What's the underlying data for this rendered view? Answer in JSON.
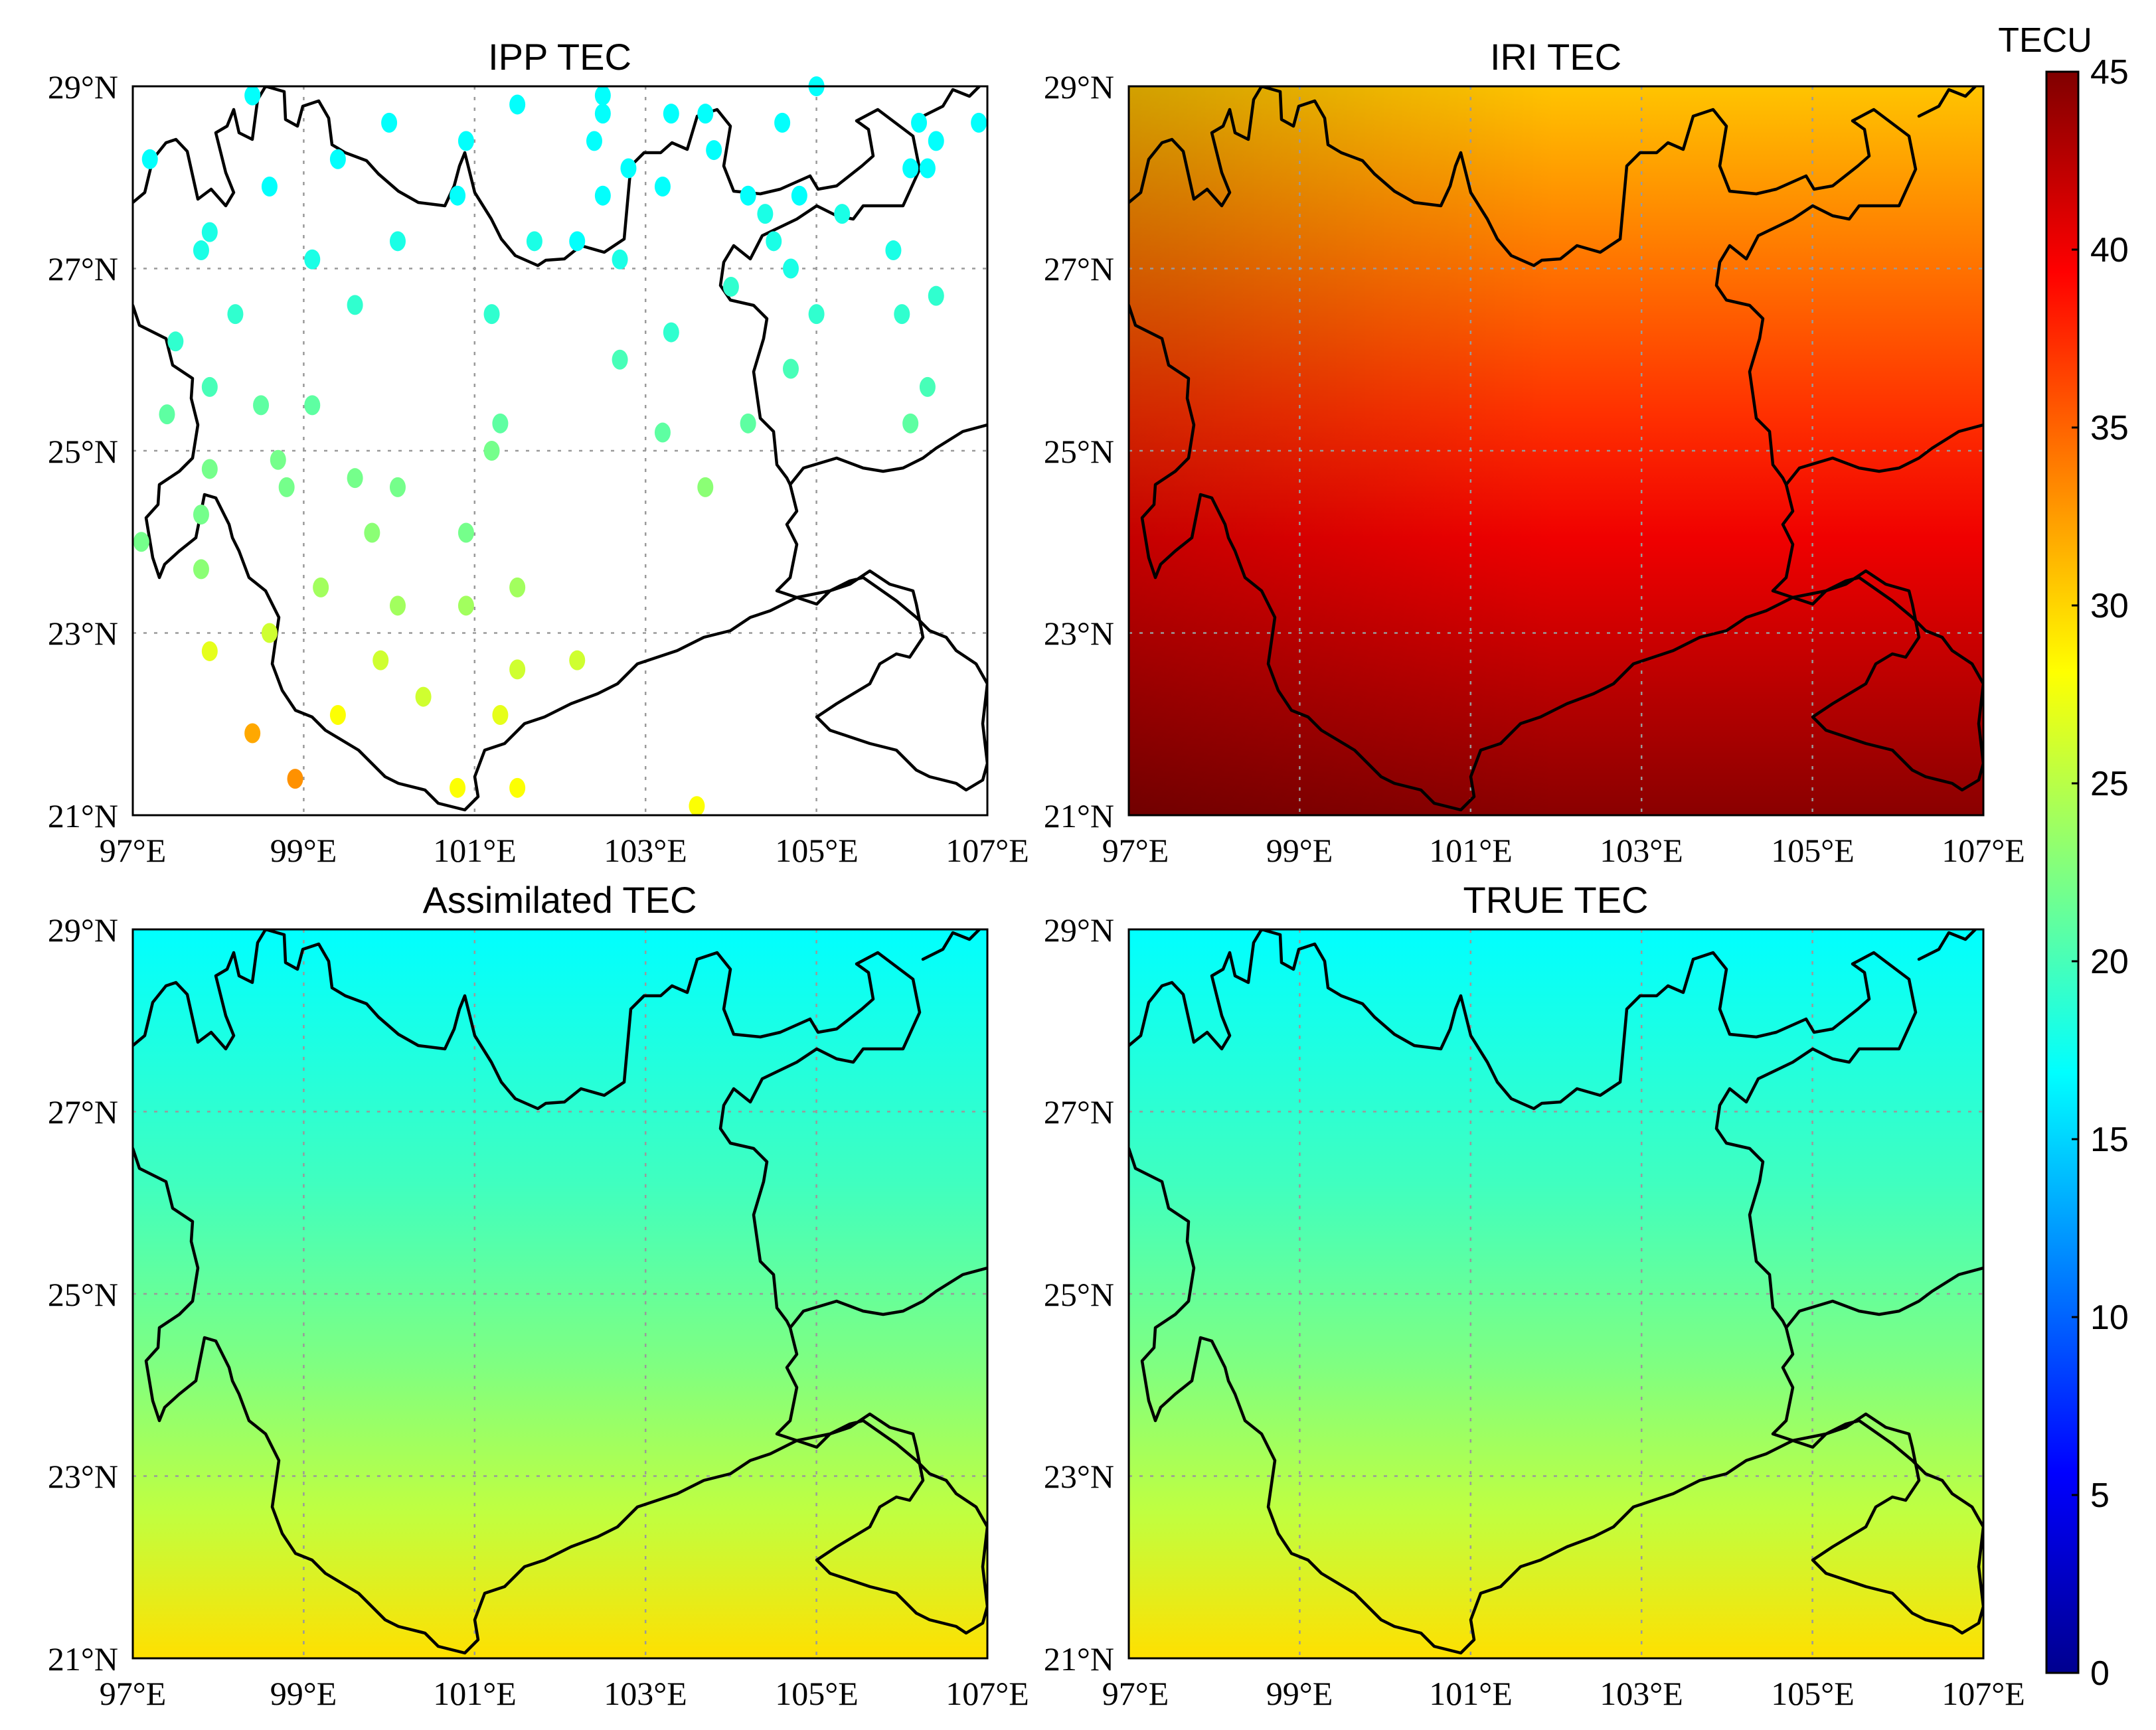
{
  "colors": {
    "colormap": [
      "#00008f",
      "#0000ff",
      "#0080ff",
      "#00ffff",
      "#80ff80",
      "#ffff00",
      "#ff8000",
      "#ff0000",
      "#800000"
    ]
  },
  "colorbar": {
    "unit": "TECU",
    "min": 0,
    "max": 45,
    "ticks": [
      "0",
      "5",
      "10",
      "15",
      "20",
      "25",
      "30",
      "35",
      "40",
      "45"
    ]
  },
  "map_extent": {
    "lon": [
      97,
      107
    ],
    "lat": [
      21,
      29
    ]
  },
  "x_tick_labels": [
    "97°E",
    "99°E",
    "101°E",
    "103°E",
    "105°E",
    "107°E"
  ],
  "y_tick_labels": [
    "29°N",
    "27°N",
    "25°N",
    "23°N",
    "21°N"
  ],
  "panels": [
    {
      "key": "ipp",
      "title": "IPP TEC"
    },
    {
      "key": "iri",
      "title": "IRI TEC",
      "tec_north": 31,
      "tec_mid": 39,
      "tec_south": 44
    },
    {
      "key": "assim",
      "title": "Assimilated TEC",
      "tec_north": 17,
      "tec_south": 28
    },
    {
      "key": "true",
      "title": "TRUE TEC",
      "tec_north": 17,
      "tec_south": 28
    }
  ],
  "chart_data": {
    "type": "scatter",
    "panel": "IPP TEC",
    "units": "TECU",
    "points": [
      {
        "lon": 98.4,
        "lat": 28.9,
        "tec": 17
      },
      {
        "lon": 97.2,
        "lat": 28.2,
        "tec": 17
      },
      {
        "lon": 98.6,
        "lat": 27.9,
        "tec": 17
      },
      {
        "lon": 99.4,
        "lat": 28.2,
        "tec": 17
      },
      {
        "lon": 100.0,
        "lat": 28.6,
        "tec": 17
      },
      {
        "lon": 100.8,
        "lat": 27.8,
        "tec": 17
      },
      {
        "lon": 100.9,
        "lat": 28.4,
        "tec": 17
      },
      {
        "lon": 101.5,
        "lat": 28.8,
        "tec": 17
      },
      {
        "lon": 102.4,
        "lat": 28.4,
        "tec": 17
      },
      {
        "lon": 103.3,
        "lat": 28.7,
        "tec": 17
      },
      {
        "lon": 102.5,
        "lat": 28.7,
        "tec": 17
      },
      {
        "lon": 102.5,
        "lat": 28.9,
        "tec": 17
      },
      {
        "lon": 103.7,
        "lat": 28.7,
        "tec": 17
      },
      {
        "lon": 104.6,
        "lat": 28.6,
        "tec": 17
      },
      {
        "lon": 105.0,
        "lat": 29.0,
        "tec": 17
      },
      {
        "lon": 106.2,
        "lat": 28.6,
        "tec": 17
      },
      {
        "lon": 106.4,
        "lat": 28.4,
        "tec": 17
      },
      {
        "lon": 106.9,
        "lat": 28.6,
        "tec": 17
      },
      {
        "lon": 103.8,
        "lat": 28.3,
        "tec": 17
      },
      {
        "lon": 103.2,
        "lat": 27.9,
        "tec": 17
      },
      {
        "lon": 102.8,
        "lat": 28.1,
        "tec": 17
      },
      {
        "lon": 102.5,
        "lat": 27.8,
        "tec": 17
      },
      {
        "lon": 102.2,
        "lat": 27.3,
        "tec": 17
      },
      {
        "lon": 101.7,
        "lat": 27.3,
        "tec": 18
      },
      {
        "lon": 102.7,
        "lat": 27.1,
        "tec": 18
      },
      {
        "lon": 104.2,
        "lat": 27.8,
        "tec": 17
      },
      {
        "lon": 104.4,
        "lat": 27.6,
        "tec": 18
      },
      {
        "lon": 104.8,
        "lat": 27.8,
        "tec": 17
      },
      {
        "lon": 105.3,
        "lat": 27.6,
        "tec": 18
      },
      {
        "lon": 106.1,
        "lat": 28.1,
        "tec": 17
      },
      {
        "lon": 106.3,
        "lat": 28.1,
        "tec": 17
      },
      {
        "lon": 105.9,
        "lat": 27.2,
        "tec": 18
      },
      {
        "lon": 104.7,
        "lat": 27.0,
        "tec": 18
      },
      {
        "lon": 104.5,
        "lat": 27.3,
        "tec": 18
      },
      {
        "lon": 104.0,
        "lat": 26.8,
        "tec": 19
      },
      {
        "lon": 97.9,
        "lat": 27.4,
        "tec": 18
      },
      {
        "lon": 97.8,
        "lat": 27.2,
        "tec": 18
      },
      {
        "lon": 99.1,
        "lat": 27.1,
        "tec": 18
      },
      {
        "lon": 100.1,
        "lat": 27.3,
        "tec": 18
      },
      {
        "lon": 99.6,
        "lat": 26.6,
        "tec": 19
      },
      {
        "lon": 98.2,
        "lat": 26.5,
        "tec": 19
      },
      {
        "lon": 97.5,
        "lat": 26.2,
        "tec": 19
      },
      {
        "lon": 101.2,
        "lat": 26.5,
        "tec": 19
      },
      {
        "lon": 103.3,
        "lat": 26.3,
        "tec": 19
      },
      {
        "lon": 102.7,
        "lat": 26.0,
        "tec": 20
      },
      {
        "lon": 105.0,
        "lat": 26.5,
        "tec": 19
      },
      {
        "lon": 106.0,
        "lat": 26.5,
        "tec": 19
      },
      {
        "lon": 106.4,
        "lat": 26.7,
        "tec": 19
      },
      {
        "lon": 104.7,
        "lat": 25.9,
        "tec": 20
      },
      {
        "lon": 106.3,
        "lat": 25.7,
        "tec": 20
      },
      {
        "lon": 106.1,
        "lat": 25.3,
        "tec": 21
      },
      {
        "lon": 97.4,
        "lat": 25.4,
        "tec": 21
      },
      {
        "lon": 97.9,
        "lat": 25.7,
        "tec": 20
      },
      {
        "lon": 98.5,
        "lat": 25.5,
        "tec": 21
      },
      {
        "lon": 99.1,
        "lat": 25.5,
        "tec": 21
      },
      {
        "lon": 101.3,
        "lat": 25.3,
        "tec": 21
      },
      {
        "lon": 101.2,
        "lat": 25.0,
        "tec": 22
      },
      {
        "lon": 103.2,
        "lat": 25.2,
        "tec": 21
      },
      {
        "lon": 104.2,
        "lat": 25.3,
        "tec": 21
      },
      {
        "lon": 97.9,
        "lat": 24.8,
        "tec": 22
      },
      {
        "lon": 98.7,
        "lat": 24.9,
        "tec": 22
      },
      {
        "lon": 98.8,
        "lat": 24.6,
        "tec": 22
      },
      {
        "lon": 99.6,
        "lat": 24.7,
        "tec": 22
      },
      {
        "lon": 100.1,
        "lat": 24.6,
        "tec": 22
      },
      {
        "lon": 103.7,
        "lat": 24.6,
        "tec": 23
      },
      {
        "lon": 97.8,
        "lat": 24.3,
        "tec": 22
      },
      {
        "lon": 97.1,
        "lat": 24.0,
        "tec": 22
      },
      {
        "lon": 99.8,
        "lat": 24.1,
        "tec": 23
      },
      {
        "lon": 100.9,
        "lat": 24.1,
        "tec": 22
      },
      {
        "lon": 97.8,
        "lat": 23.7,
        "tec": 23
      },
      {
        "lon": 99.2,
        "lat": 23.5,
        "tec": 24
      },
      {
        "lon": 101.5,
        "lat": 23.5,
        "tec": 24
      },
      {
        "lon": 100.1,
        "lat": 23.3,
        "tec": 24
      },
      {
        "lon": 100.9,
        "lat": 23.3,
        "tec": 24
      },
      {
        "lon": 98.6,
        "lat": 23.0,
        "tec": 26
      },
      {
        "lon": 97.9,
        "lat": 22.8,
        "tec": 27
      },
      {
        "lon": 99.9,
        "lat": 22.7,
        "tec": 26
      },
      {
        "lon": 101.5,
        "lat": 22.6,
        "tec": 26
      },
      {
        "lon": 102.2,
        "lat": 22.7,
        "tec": 26
      },
      {
        "lon": 100.4,
        "lat": 22.3,
        "tec": 26
      },
      {
        "lon": 101.3,
        "lat": 22.1,
        "tec": 27
      },
      {
        "lon": 99.4,
        "lat": 22.1,
        "tec": 28
      },
      {
        "lon": 98.4,
        "lat": 21.9,
        "tec": 32
      },
      {
        "lon": 98.9,
        "lat": 21.4,
        "tec": 33
      },
      {
        "lon": 100.8,
        "lat": 21.3,
        "tec": 28
      },
      {
        "lon": 101.5,
        "lat": 21.3,
        "tec": 28
      },
      {
        "lon": 103.6,
        "lat": 21.1,
        "tec": 28
      }
    ]
  }
}
